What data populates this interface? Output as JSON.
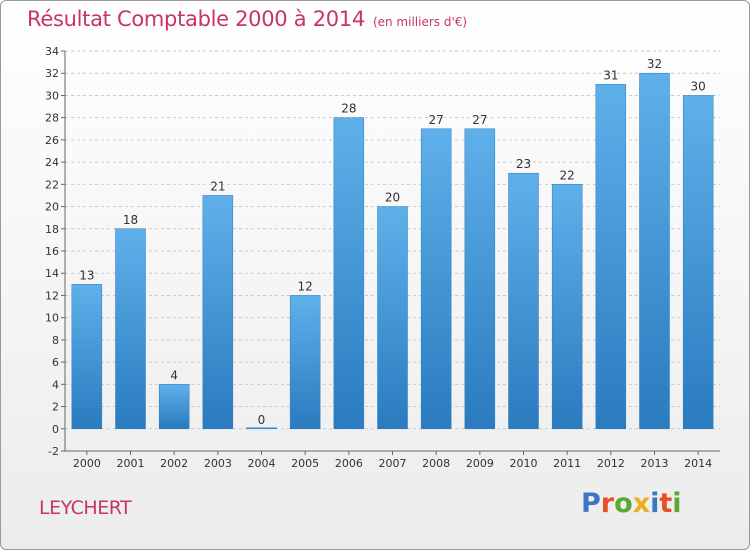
{
  "header": {
    "title": "Résultat Comptable 2000 à 2014",
    "unit": "(en milliers d'€)"
  },
  "commune": "LEYCHERT",
  "logo": {
    "text": "Proxiti",
    "letter_colors": [
      "#3a78c2",
      "#e8502a",
      "#5aa830",
      "#e8b020",
      "#3a78c2",
      "#e8502a",
      "#5aa830"
    ]
  },
  "chart_data": {
    "type": "bar",
    "categories": [
      "2000",
      "2001",
      "2002",
      "2003",
      "2004",
      "2005",
      "2006",
      "2007",
      "2008",
      "2009",
      "2010",
      "2011",
      "2012",
      "2013",
      "2014"
    ],
    "values": [
      13,
      18,
      4,
      21,
      0,
      12,
      28,
      20,
      27,
      27,
      23,
      22,
      31,
      32,
      30
    ],
    "ylim": [
      -2,
      34
    ],
    "yticks": [
      -2,
      0,
      2,
      4,
      6,
      8,
      10,
      12,
      14,
      16,
      18,
      20,
      22,
      24,
      26,
      28,
      30,
      32,
      34
    ],
    "grid": true,
    "bar_color": "#4f9fde"
  }
}
